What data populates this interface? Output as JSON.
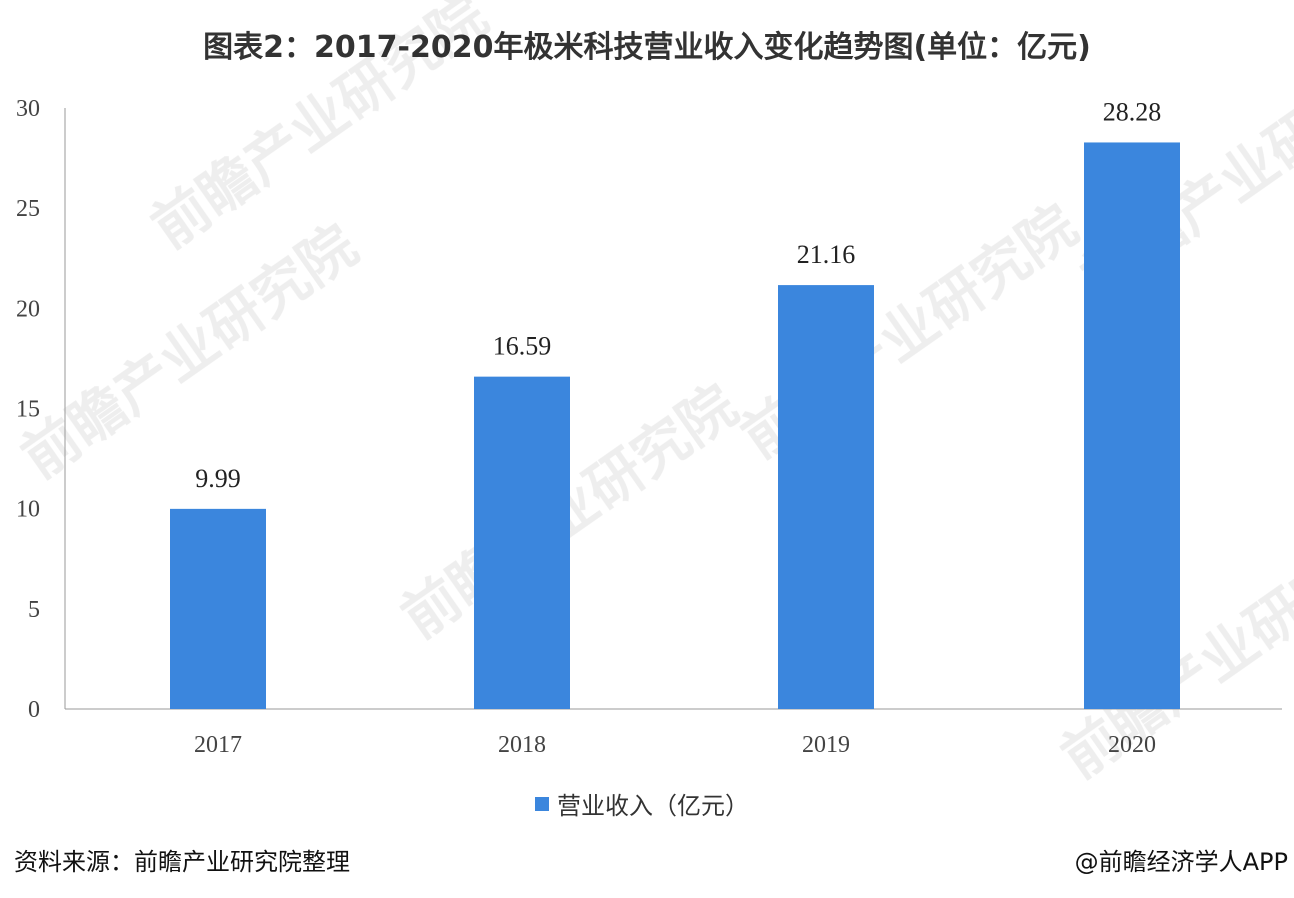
{
  "title": "图表2：2017-2020年极米科技营业收入变化趋势图(单位：亿元)",
  "chart_data": {
    "type": "bar",
    "categories": [
      "2017",
      "2018",
      "2019",
      "2020"
    ],
    "series": [
      {
        "name": "营业收入（亿元）",
        "values": [
          9.99,
          16.59,
          21.16,
          28.28
        ],
        "color": "#3b86dd"
      }
    ],
    "data_labels": [
      "9.99",
      "16.59",
      "21.16",
      "28.28"
    ],
    "y_ticks": [
      "0",
      "5",
      "10",
      "15",
      "20",
      "25",
      "30"
    ],
    "ylim": [
      0,
      30
    ],
    "grid": false,
    "legend_position": "bottom"
  },
  "legend": {
    "label": "营业收入（亿元）"
  },
  "footer": {
    "source": "资料来源：前瞻产业研究院整理",
    "credit": "@前瞻经济学人APP"
  },
  "watermark": {
    "text": "前瞻产业研究院"
  }
}
